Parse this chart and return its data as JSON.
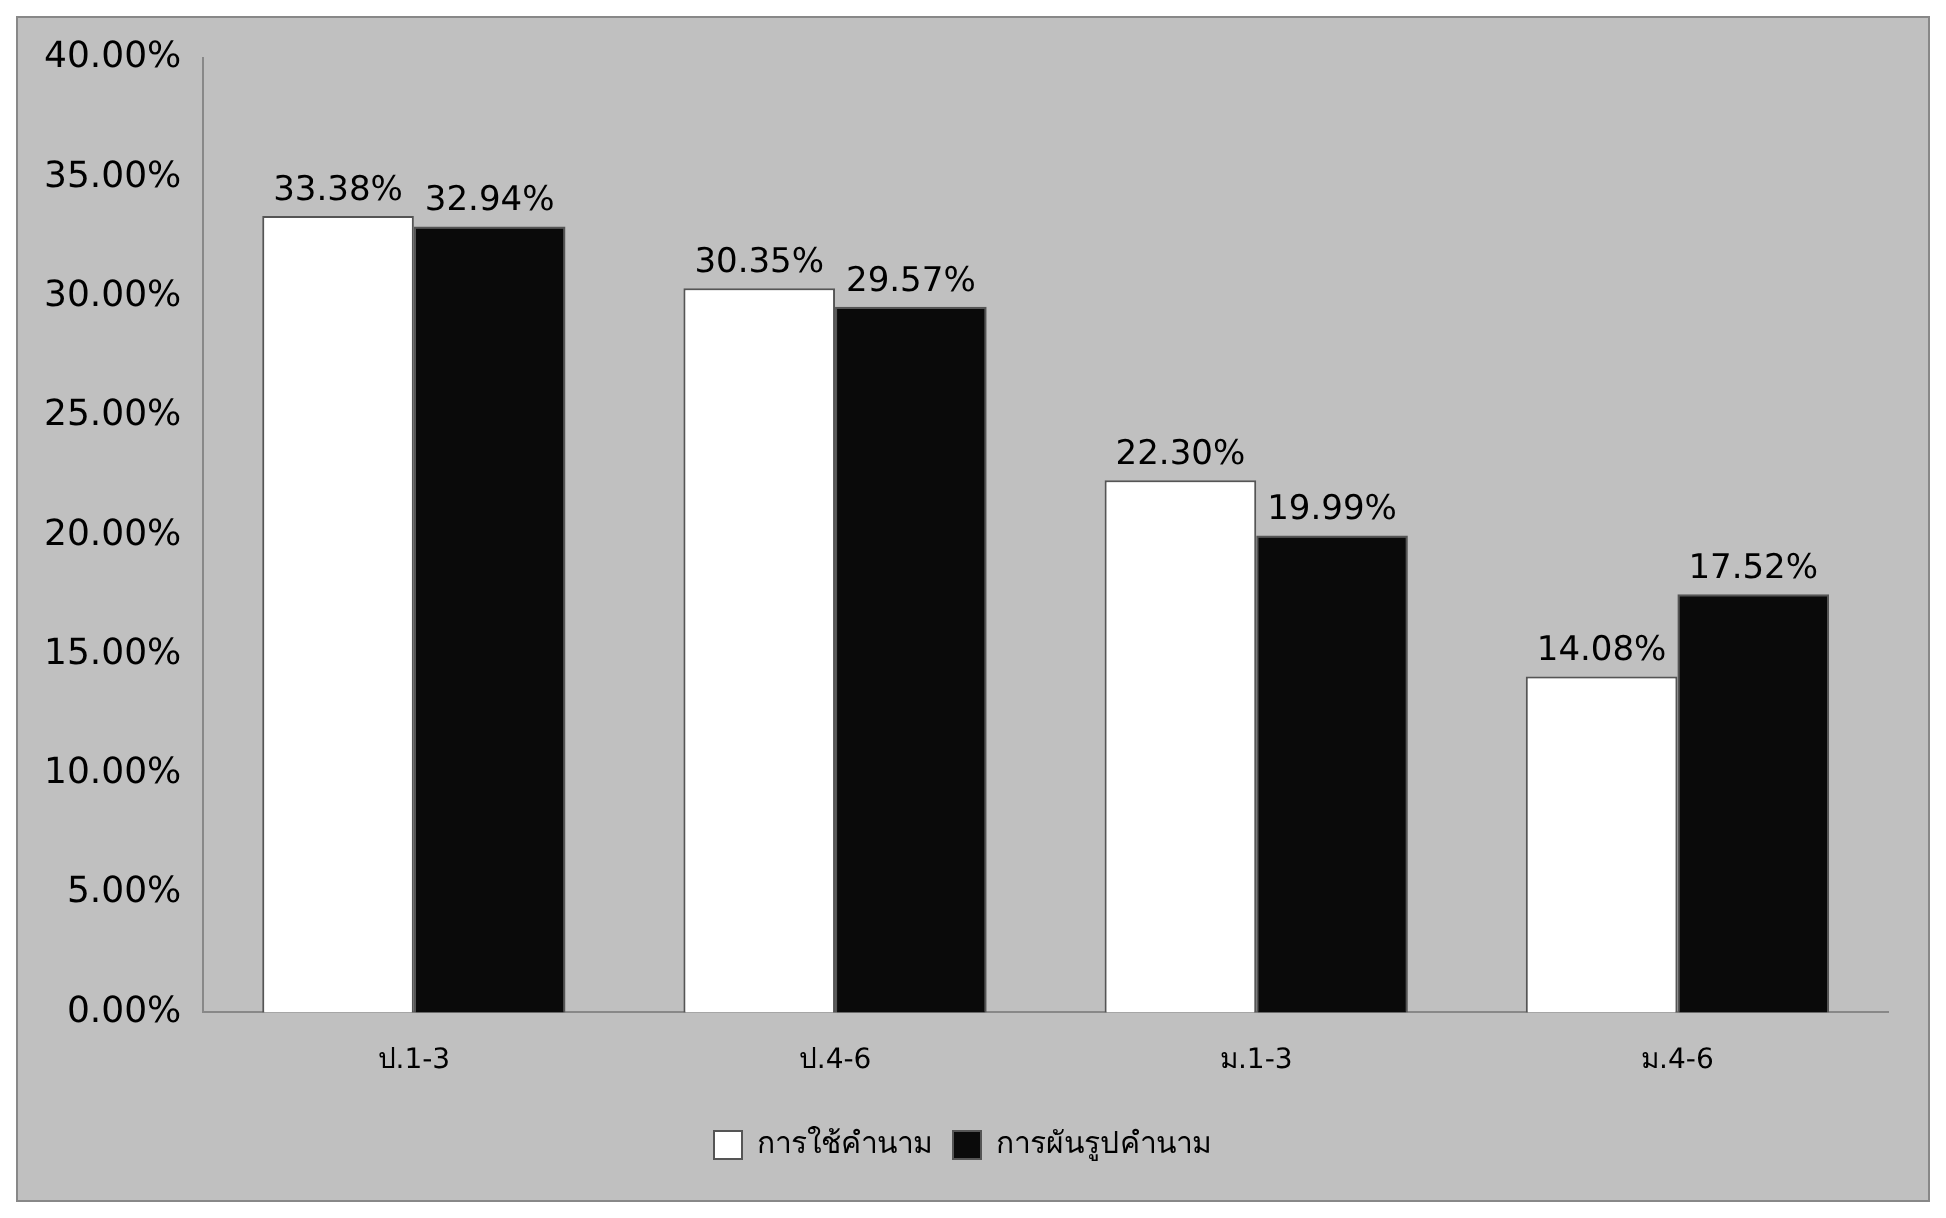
{
  "chart_data": {
    "type": "bar",
    "categories": [
      "ป.1-3",
      "ป.4-6",
      "ม.1-3",
      "ม.4-6"
    ],
    "series": [
      {
        "name": "การใช้คำนาม",
        "color": "#ffffff",
        "values": [
          33.38,
          30.35,
          22.3,
          14.08
        ],
        "value_labels": [
          "33.38%",
          "30.35%",
          "22.30%",
          "14.08%"
        ]
      },
      {
        "name": "การผันรูปคำนาม",
        "color": "#0a0a0a",
        "values": [
          32.94,
          29.57,
          19.99,
          17.52
        ],
        "value_labels": [
          "32.94%",
          "29.57%",
          "19.99%",
          "17.52%"
        ]
      }
    ],
    "ylim": [
      0,
      40
    ],
    "yticks": [
      {
        "value": 0,
        "label": "0.00%"
      },
      {
        "value": 5,
        "label": "5.00%"
      },
      {
        "value": 10,
        "label": "10.00%"
      },
      {
        "value": 15,
        "label": "15.00%"
      },
      {
        "value": 20,
        "label": "20.00%"
      },
      {
        "value": 25,
        "label": "25.00%"
      },
      {
        "value": 30,
        "label": "30.00%"
      },
      {
        "value": 35,
        "label": "35.00%"
      },
      {
        "value": 40,
        "label": "40.00%"
      }
    ],
    "grid": false,
    "legend": "bottom"
  }
}
